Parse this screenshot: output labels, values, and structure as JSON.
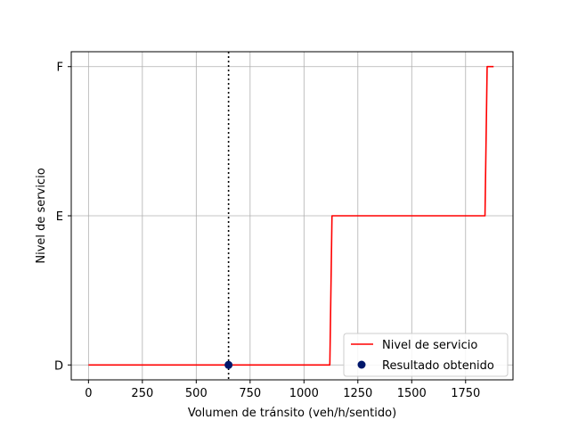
{
  "chart_data": {
    "type": "line",
    "xlabel": "Volumen de tránsito (veh/h/sentido)",
    "ylabel": "Nivel de servicio",
    "xlim": [
      -80,
      1970
    ],
    "ylim": [
      -0.1,
      2.1
    ],
    "x_ticks": [
      0,
      250,
      500,
      750,
      1000,
      1250,
      1500,
      1750
    ],
    "x_tick_labels": [
      "0",
      "250",
      "500",
      "750",
      "1000",
      "1250",
      "1500",
      "1750"
    ],
    "y_ticks": [
      0,
      1,
      2
    ],
    "y_tick_labels": [
      "D",
      "E",
      "F"
    ],
    "grid": true,
    "legend_position": "lower-right",
    "series": [
      {
        "name": "Nivel de servicio",
        "kind": "line",
        "color": "#ff0000",
        "points": [
          [
            0,
            0
          ],
          [
            1120,
            0
          ],
          [
            1130,
            1
          ],
          [
            1840,
            1
          ],
          [
            1850,
            2
          ],
          [
            1880,
            2
          ]
        ]
      },
      {
        "name": "Resultado obtenido",
        "kind": "scatter",
        "color": "#00176b",
        "points": [
          [
            650,
            0
          ]
        ]
      }
    ],
    "reference_line": {
      "axis": "x",
      "value": 650,
      "style": "dotted",
      "color": "#000000"
    }
  }
}
